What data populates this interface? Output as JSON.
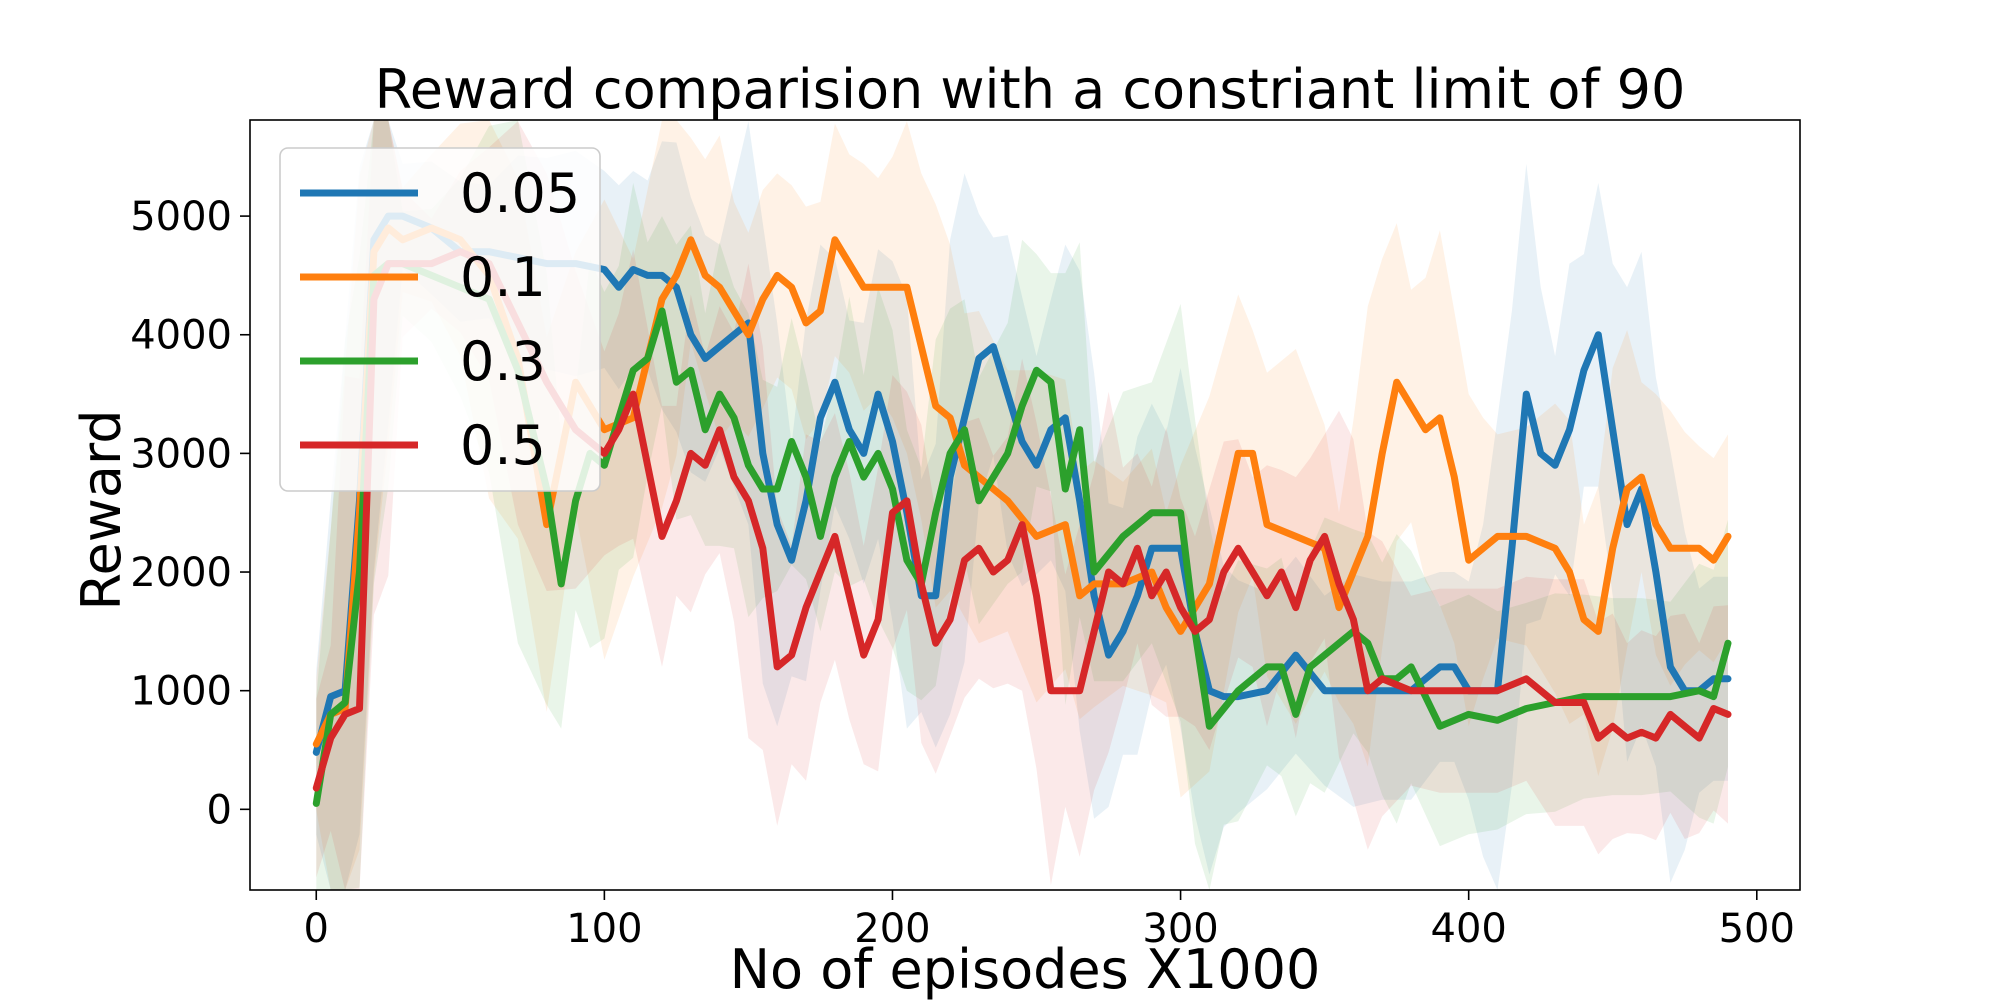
{
  "chart_data": {
    "type": "line",
    "title": "Reward comparision with a constriant limit of 90",
    "xlabel": "No of episodes X1000",
    "ylabel": "Reward",
    "xlim": [
      -23,
      515
    ],
    "ylim": [
      -680,
      5810
    ],
    "xticks": [
      0,
      100,
      200,
      300,
      400,
      500
    ],
    "yticks": [
      0,
      1000,
      2000,
      3000,
      4000,
      5000
    ],
    "legend": {
      "placement": "top-left"
    },
    "series": [
      {
        "name": "0.05",
        "color": "#1f77b4",
        "x": [
          0,
          5,
          10,
          15,
          20,
          25,
          30,
          40,
          50,
          60,
          70,
          80,
          90,
          100,
          105,
          110,
          115,
          120,
          125,
          130,
          135,
          140,
          145,
          150,
          155,
          160,
          165,
          170,
          175,
          180,
          185,
          190,
          195,
          200,
          205,
          210,
          215,
          220,
          225,
          230,
          235,
          240,
          245,
          250,
          255,
          260,
          265,
          270,
          275,
          280,
          285,
          290,
          295,
          300,
          305,
          310,
          315,
          320,
          330,
          340,
          350,
          360,
          370,
          380,
          390,
          395,
          400,
          405,
          410,
          415,
          420,
          425,
          430,
          435,
          440,
          445,
          450,
          455,
          460,
          465,
          470,
          475,
          480,
          485,
          490
        ],
        "y": [
          480,
          950,
          1000,
          2600,
          4800,
          5000,
          5000,
          4900,
          4700,
          4700,
          4650,
          4600,
          4600,
          4550,
          4400,
          4550,
          4500,
          4500,
          4400,
          4000,
          3800,
          3900,
          4000,
          4100,
          3000,
          2400,
          2100,
          2600,
          3300,
          3600,
          3200,
          3000,
          3500,
          3100,
          2500,
          1800,
          1800,
          2800,
          3300,
          3800,
          3900,
          3500,
          3100,
          2900,
          3200,
          3300,
          2600,
          1800,
          1300,
          1500,
          1800,
          2200,
          2200,
          2200,
          1500,
          1000,
          950,
          950,
          1000,
          1300,
          1000,
          1000,
          1000,
          1000,
          1200,
          1200,
          1000,
          1000,
          1000,
          2200,
          3500,
          3000,
          2900,
          3200,
          3700,
          4000,
          3200,
          2400,
          2700,
          2000,
          1200,
          1000,
          1000,
          1100,
          1100
        ]
      },
      {
        "name": "0.1",
        "color": "#ff7f0e",
        "x": [
          0,
          5,
          10,
          15,
          20,
          25,
          30,
          40,
          50,
          60,
          70,
          80,
          90,
          100,
          110,
          120,
          125,
          130,
          135,
          140,
          145,
          150,
          155,
          160,
          165,
          170,
          175,
          180,
          185,
          190,
          195,
          200,
          205,
          210,
          215,
          220,
          225,
          230,
          240,
          250,
          260,
          265,
          270,
          280,
          290,
          295,
          300,
          310,
          320,
          325,
          330,
          340,
          350,
          355,
          360,
          365,
          370,
          375,
          380,
          385,
          390,
          395,
          400,
          405,
          410,
          420,
          430,
          435,
          440,
          445,
          450,
          455,
          460,
          465,
          470,
          475,
          480,
          485,
          490
        ],
        "y": [
          550,
          800,
          850,
          2500,
          4700,
          4900,
          4800,
          4900,
          4800,
          4500,
          3800,
          2400,
          3600,
          3200,
          3300,
          4300,
          4500,
          4800,
          4500,
          4400,
          4200,
          4000,
          4300,
          4500,
          4400,
          4100,
          4200,
          4800,
          4600,
          4400,
          4400,
          4400,
          4400,
          3900,
          3400,
          3300,
          2900,
          2800,
          2600,
          2300,
          2400,
          1800,
          1900,
          1900,
          2000,
          1700,
          1500,
          1900,
          3000,
          3000,
          2400,
          2300,
          2200,
          1700,
          2000,
          2300,
          3000,
          3600,
          3400,
          3200,
          3300,
          2800,
          2100,
          2200,
          2300,
          2300,
          2200,
          2000,
          1600,
          1500,
          2200,
          2700,
          2800,
          2400,
          2200,
          2200,
          2200,
          2100,
          2300
        ]
      },
      {
        "name": "0.3",
        "color": "#2ca02c",
        "x": [
          0,
          5,
          10,
          15,
          20,
          25,
          30,
          40,
          50,
          60,
          70,
          80,
          85,
          90,
          95,
          100,
          105,
          110,
          115,
          120,
          125,
          130,
          135,
          140,
          145,
          150,
          155,
          160,
          165,
          170,
          175,
          180,
          185,
          190,
          195,
          200,
          205,
          210,
          215,
          220,
          225,
          230,
          240,
          245,
          250,
          255,
          260,
          265,
          270,
          280,
          290,
          300,
          305,
          310,
          315,
          320,
          330,
          335,
          340,
          345,
          350,
          360,
          365,
          370,
          375,
          380,
          390,
          400,
          410,
          420,
          430,
          440,
          450,
          460,
          470,
          480,
          485,
          490
        ],
        "y": [
          50,
          800,
          900,
          2000,
          4500,
          4600,
          4600,
          4500,
          4400,
          4300,
          3700,
          2700,
          1900,
          2600,
          3000,
          2900,
          3300,
          3700,
          3800,
          4200,
          3600,
          3700,
          3200,
          3500,
          3300,
          2900,
          2700,
          2700,
          3100,
          2800,
          2300,
          2800,
          3100,
          2800,
          3000,
          2700,
          2100,
          1900,
          2500,
          3000,
          3200,
          2600,
          3000,
          3400,
          3700,
          3600,
          2700,
          3200,
          2000,
          2300,
          2500,
          2500,
          1500,
          700,
          850,
          1000,
          1200,
          1200,
          800,
          1200,
          1300,
          1500,
          1400,
          1100,
          1100,
          1200,
          700,
          800,
          750,
          850,
          900,
          950,
          950,
          950,
          950,
          1000,
          950,
          1400
        ]
      },
      {
        "name": "0.5",
        "color": "#d62728",
        "x": [
          0,
          5,
          10,
          15,
          20,
          25,
          30,
          40,
          50,
          60,
          70,
          80,
          90,
          100,
          105,
          110,
          115,
          120,
          125,
          130,
          135,
          140,
          145,
          150,
          155,
          160,
          165,
          170,
          175,
          180,
          185,
          190,
          195,
          200,
          205,
          210,
          215,
          220,
          225,
          230,
          235,
          240,
          245,
          250,
          255,
          260,
          265,
          270,
          275,
          280,
          285,
          290,
          295,
          300,
          305,
          310,
          315,
          320,
          325,
          330,
          335,
          340,
          345,
          350,
          355,
          360,
          365,
          370,
          380,
          390,
          400,
          410,
          420,
          430,
          440,
          445,
          450,
          455,
          460,
          465,
          470,
          475,
          480,
          485,
          490
        ],
        "y": [
          180,
          600,
          800,
          850,
          4300,
          4600,
          4600,
          4600,
          4700,
          4600,
          4100,
          3600,
          3200,
          3000,
          3200,
          3500,
          2900,
          2300,
          2600,
          3000,
          2900,
          3200,
          2800,
          2600,
          2200,
          1200,
          1300,
          1700,
          2000,
          2300,
          1800,
          1300,
          1600,
          2500,
          2600,
          1900,
          1400,
          1600,
          2100,
          2200,
          2000,
          2100,
          2400,
          1800,
          1000,
          1000,
          1000,
          1500,
          2000,
          1900,
          2200,
          1800,
          2000,
          1700,
          1500,
          1600,
          2000,
          2200,
          2000,
          1800,
          2000,
          1700,
          2100,
          2300,
          1900,
          1600,
          1000,
          1100,
          1000,
          1000,
          1000,
          1000,
          1100,
          900,
          900,
          600,
          700,
          600,
          650,
          600,
          800,
          700,
          600,
          850,
          800
        ]
      }
    ]
  }
}
